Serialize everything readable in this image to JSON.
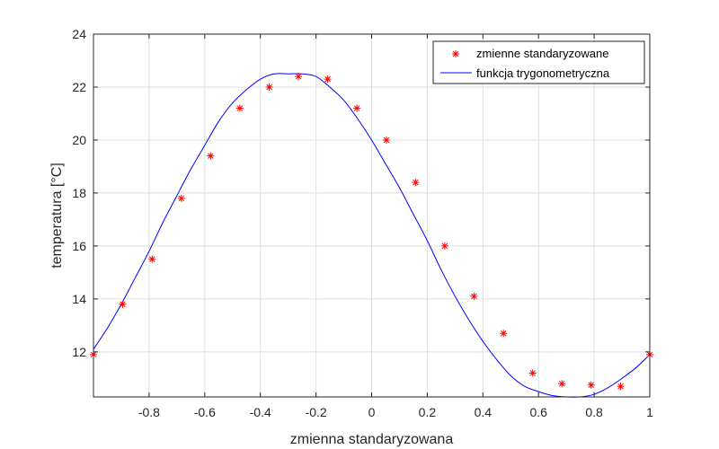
{
  "chart_data": {
    "type": "line",
    "title": "",
    "xlabel": "zmienna standaryzowana",
    "ylabel": "temperatura [°C]",
    "xlim": [
      -1,
      1
    ],
    "ylim": [
      10.3,
      24
    ],
    "xticks": [
      -0.8,
      -0.6,
      -0.4,
      -0.2,
      0,
      0.2,
      0.4,
      0.6,
      0.8,
      1
    ],
    "xtick_labels": [
      "-0.8",
      "-0.6",
      "-0.4",
      "-0.2",
      "0",
      "0.2",
      "0.4",
      "0.6",
      "0.8",
      "1"
    ],
    "yticks": [
      12,
      14,
      16,
      18,
      20,
      22,
      24
    ],
    "ytick_labels": [
      "12",
      "14",
      "16",
      "18",
      "20",
      "22",
      "24"
    ],
    "grid": true,
    "legend_position": "top-right",
    "series": [
      {
        "name": "zmienne standaryzowane",
        "kind": "scatter",
        "marker": "asterisk",
        "color": "#ff0000",
        "x": [
          -1.0,
          -0.895,
          -0.789,
          -0.684,
          -0.579,
          -0.474,
          -0.368,
          -0.263,
          -0.158,
          -0.053,
          0.053,
          0.158,
          0.263,
          0.368,
          0.474,
          0.579,
          0.684,
          0.789,
          0.895,
          1.0
        ],
        "y": [
          11.9,
          13.8,
          15.5,
          17.8,
          19.4,
          21.2,
          22.0,
          22.4,
          22.3,
          21.2,
          20.0,
          18.4,
          16.0,
          14.1,
          12.7,
          11.2,
          10.8,
          10.75,
          10.7,
          11.9
        ]
      },
      {
        "name": "funkcja trygonometryczna",
        "kind": "line",
        "color": "#0000ff",
        "x": [
          -1.0,
          -0.95,
          -0.9,
          -0.85,
          -0.8,
          -0.75,
          -0.7,
          -0.65,
          -0.6,
          -0.55,
          -0.5,
          -0.45,
          -0.4,
          -0.35,
          -0.3,
          -0.25,
          -0.2,
          -0.15,
          -0.1,
          -0.05,
          0.0,
          0.05,
          0.1,
          0.15,
          0.2,
          0.25,
          0.3,
          0.35,
          0.4,
          0.45,
          0.5,
          0.55,
          0.6,
          0.65,
          0.7,
          0.75,
          0.8,
          0.85,
          0.9,
          0.95,
          1.0
        ],
        "y": [
          12.1,
          12.9,
          13.8,
          14.8,
          15.8,
          16.9,
          17.9,
          18.9,
          19.8,
          20.7,
          21.4,
          21.9,
          22.3,
          22.5,
          22.5,
          22.5,
          22.4,
          22.0,
          21.5,
          20.8,
          20.0,
          19.1,
          18.2,
          17.2,
          16.2,
          15.1,
          14.1,
          13.2,
          12.4,
          11.7,
          11.1,
          10.7,
          10.5,
          10.35,
          10.3,
          10.3,
          10.4,
          10.65,
          11.0,
          11.4,
          11.9
        ]
      }
    ]
  }
}
